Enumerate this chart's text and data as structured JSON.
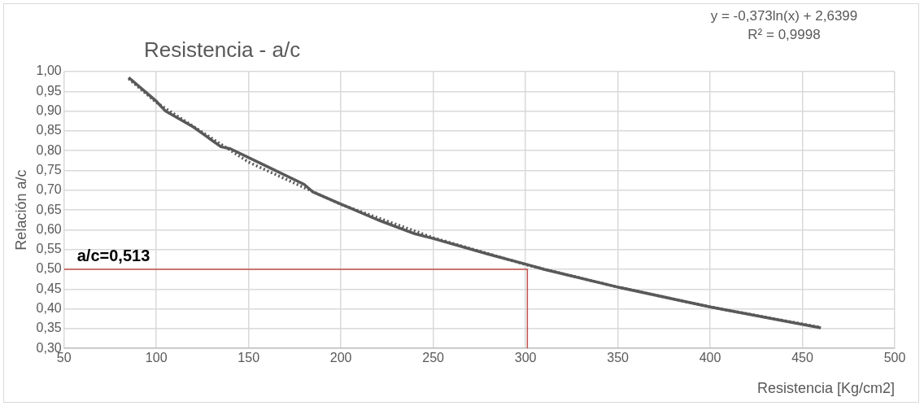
{
  "chart_data": {
    "type": "line",
    "title": "Resistencia - a/c",
    "xlabel": "Resistencia [Kg/cm2]",
    "ylabel": "Relación a/c",
    "annotations": [
      "y = -0,373ln(x) + 2,6399",
      "R² = 0,9998",
      {
        "text": "a/c=0,513",
        "x": 50,
        "y": 0.5
      }
    ],
    "series": [
      {
        "color": "#595959",
        "x": [
          85,
          100,
          105,
          120,
          135,
          140,
          160,
          180,
          185,
          200,
          220,
          240,
          250,
          280,
          300,
          310,
          350,
          400,
          460
        ],
        "values": [
          0.985,
          0.925,
          0.9,
          0.86,
          0.81,
          0.805,
          0.76,
          0.715,
          0.695,
          0.665,
          0.625,
          0.59,
          0.578,
          0.538,
          0.513,
          0.5,
          0.455,
          0.405,
          0.352
        ]
      },
      {
        "color": "#595959",
        "line_style": "dotted",
        "x": [
          85,
          100,
          150,
          200,
          250,
          300,
          350,
          400,
          460
        ],
        "values": [
          0.982,
          0.922,
          0.771,
          0.664,
          0.58,
          0.512,
          0.455,
          0.405,
          0.353
        ]
      },
      {
        "color": "#c0504d",
        "x": [
          50,
          301,
          301
        ],
        "values": [
          0.5,
          0.5,
          0.3
        ]
      }
    ],
    "xlim": [
      50,
      500
    ],
    "xticks": [
      50,
      100,
      150,
      200,
      250,
      300,
      350,
      400,
      450,
      500
    ],
    "ylim": [
      0.3,
      1.0
    ],
    "yticks": [
      {
        "value": 0.3,
        "label": "0,30"
      },
      {
        "value": 0.35,
        "label": "0,35"
      },
      {
        "value": 0.4,
        "label": "0,40"
      },
      {
        "value": 0.45,
        "label": "0,45"
      },
      {
        "value": 0.5,
        "label": "0,50"
      },
      {
        "value": 0.55,
        "label": "0,55"
      },
      {
        "value": 0.6,
        "label": "0,60"
      },
      {
        "value": 0.65,
        "label": "0,65"
      },
      {
        "value": 0.7,
        "label": "0,70"
      },
      {
        "value": 0.75,
        "label": "0,75"
      },
      {
        "value": 0.8,
        "label": "0,80"
      },
      {
        "value": 0.85,
        "label": "0,85"
      },
      {
        "value": 0.9,
        "label": "0,90"
      },
      {
        "value": 0.95,
        "label": "0,95"
      },
      {
        "value": 1.0,
        "label": "1,00"
      }
    ],
    "grid": true,
    "legend": false,
    "marker": "none"
  }
}
